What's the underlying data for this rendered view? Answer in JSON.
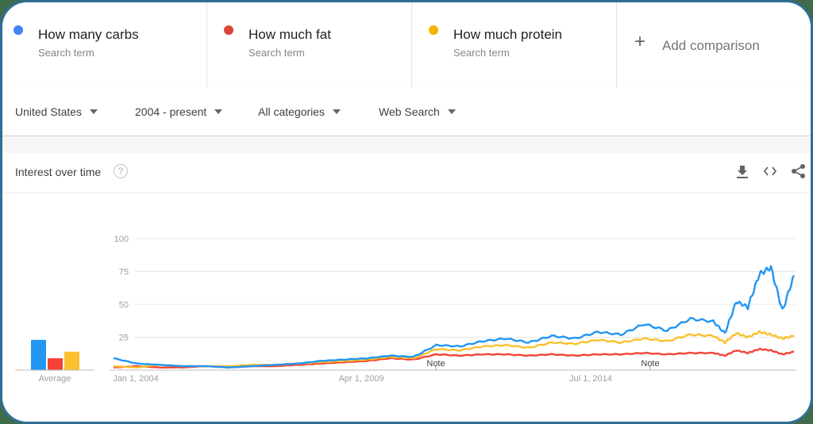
{
  "terms": [
    {
      "name": "How many carbs",
      "sub": "Search term",
      "color": "#4285f4"
    },
    {
      "name": "How much fat",
      "sub": "Search term",
      "color": "#db4437"
    },
    {
      "name": "How much protein",
      "sub": "Search term",
      "color": "#f4b400"
    }
  ],
  "add_comparison": {
    "icon": "+",
    "label": "Add comparison"
  },
  "filters": {
    "region": "United States",
    "time": "2004 - present",
    "category": "All categories",
    "search_type": "Web Search"
  },
  "card": {
    "title": "Interest over time",
    "help_icon": "?",
    "actions": [
      "download-icon",
      "embed-icon",
      "share-icon"
    ]
  },
  "average_label": "Average",
  "notes": [
    "Note",
    "Note"
  ],
  "chart_data": {
    "type": "line",
    "title": "Interest over time",
    "xlabel": "",
    "ylabel": "",
    "ylim": [
      0,
      100
    ],
    "yticks": [
      25,
      50,
      75,
      100
    ],
    "xtick_labels": [
      "Jan 1, 2004",
      "Apr 1, 2009",
      "Jul 1, 2014"
    ],
    "grid": true,
    "legend_position": "top",
    "annotations": [
      {
        "label": "Note",
        "x_approx": "2011"
      },
      {
        "label": "Note",
        "x_approx": "2016"
      }
    ],
    "x": [
      "2004.0",
      "2004.5",
      "2005.0",
      "2005.5",
      "2006.0",
      "2006.5",
      "2007.0",
      "2007.5",
      "2008.0",
      "2008.5",
      "2009.0",
      "2009.5",
      "2010.0",
      "2010.5",
      "2011.0",
      "2011.5",
      "2012.0",
      "2012.5",
      "2013.0",
      "2013.5",
      "2014.0",
      "2014.5",
      "2015.0",
      "2015.5",
      "2016.0",
      "2016.5",
      "2017.0",
      "2017.25",
      "2017.5",
      "2017.75",
      "2018.0",
      "2018.25",
      "2018.5",
      "2018.75"
    ],
    "series": [
      {
        "name": "How many carbs",
        "color": "#2196f3",
        "values": [
          9,
          5,
          4,
          3,
          3,
          2,
          3,
          4,
          5,
          7,
          8,
          9,
          11,
          10,
          19,
          18,
          22,
          24,
          21,
          26,
          24,
          29,
          27,
          35,
          30,
          39,
          37,
          28,
          52,
          48,
          73,
          78,
          45,
          72
        ],
        "average": 23
      },
      {
        "name": "How much fat",
        "color": "#f44336",
        "values": [
          2,
          3,
          2,
          2,
          3,
          2,
          3,
          3,
          4,
          5,
          6,
          7,
          9,
          8,
          12,
          11,
          12,
          12,
          11,
          12,
          11,
          12,
          12,
          13,
          12,
          13,
          13,
          11,
          15,
          13,
          16,
          15,
          12,
          14
        ],
        "average": 9
      },
      {
        "name": "How much protein",
        "color": "#fbc02d",
        "values": [
          3,
          2,
          4,
          3,
          3,
          3,
          4,
          4,
          5,
          6,
          7,
          8,
          10,
          9,
          16,
          15,
          18,
          19,
          17,
          21,
          20,
          23,
          21,
          24,
          22,
          27,
          26,
          21,
          28,
          25,
          29,
          27,
          24,
          26
        ],
        "average": 14
      }
    ]
  }
}
